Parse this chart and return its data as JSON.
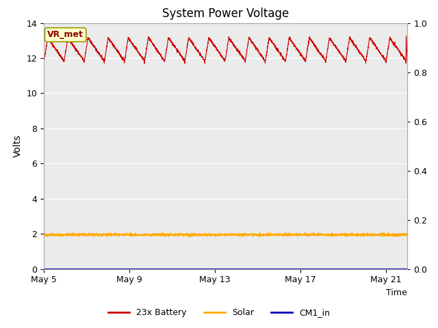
{
  "title": "System Power Voltage",
  "xlabel": "Time",
  "ylabel": "Volts",
  "xlim_days": [
    0,
    17
  ],
  "ylim_left": [
    0,
    14
  ],
  "ylim_right": [
    0.0,
    1.0
  ],
  "xtick_labels": [
    "May 5",
    "May 9",
    "May 13",
    "May 17",
    "May 21"
  ],
  "xtick_positions": [
    0,
    4,
    8,
    12,
    16
  ],
  "ytick_left": [
    0,
    2,
    4,
    6,
    8,
    10,
    12,
    14
  ],
  "ytick_right": [
    0.0,
    0.2,
    0.4,
    0.6,
    0.8,
    1.0
  ],
  "bg_color": "#ebebeb",
  "annotation_text": "VR_met",
  "annotation_bg": "#ffffcc",
  "annotation_border": "#999900",
  "annotation_text_color": "#880000",
  "battery_color": "#cc0000",
  "solar_color": "#ffaa00",
  "cm1_color": "#0000bb",
  "battery_base": 11.85,
  "battery_peak": 13.15,
  "battery_drop": 11.75,
  "solar_base": 1.95,
  "cm1_value": 0.0,
  "n_cycles": 18,
  "total_days": 17,
  "legend_labels": [
    "23x Battery",
    "Solar",
    "CM1_in"
  ]
}
